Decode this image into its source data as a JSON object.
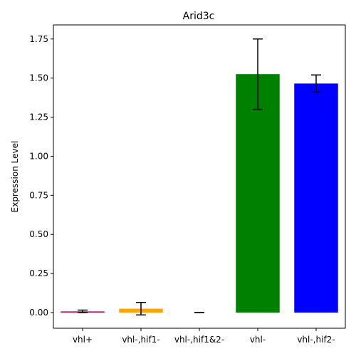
{
  "chart_data": {
    "type": "bar",
    "title": "Arid3c",
    "xlabel": "",
    "ylabel": "Expression Level",
    "categories": [
      "vhl+",
      "vhl-,hif1-",
      "vhl-,hif1&2-",
      "vhl-",
      "vhl-,hif2-"
    ],
    "values": [
      0.008,
      0.025,
      0.0,
      1.525,
      1.465
    ],
    "errors": [
      0.008,
      0.04,
      0.0,
      0.225,
      0.055
    ],
    "colors": [
      "#c2185b",
      "#ffa500",
      "#000000",
      "#008000",
      "#0000ff"
    ],
    "ylim": [
      -0.1,
      1.84
    ],
    "yticks": [
      0.0,
      0.25,
      0.5,
      0.75,
      1.0,
      1.25,
      1.5,
      1.75
    ],
    "ytick_labels": [
      "0.00",
      "0.25",
      "0.50",
      "0.75",
      "1.00",
      "1.25",
      "1.50",
      "1.75"
    ],
    "grid": false,
    "legend": "none"
  }
}
